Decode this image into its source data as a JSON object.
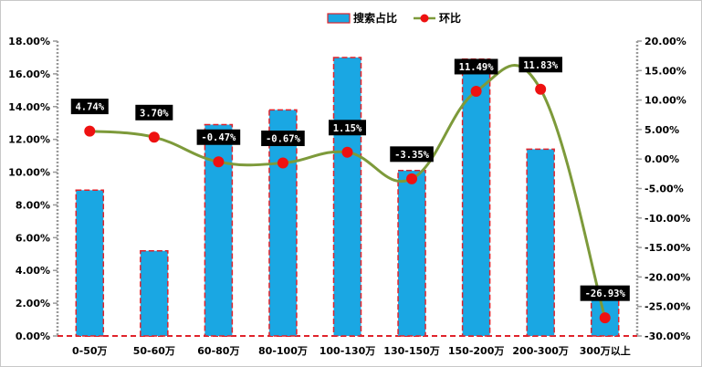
{
  "chart_data": {
    "type": "bar+line",
    "categories": [
      "0-50万",
      "50-60万",
      "60-80万",
      "80-100万",
      "100-130万",
      "130-150万",
      "150-200万",
      "200-300万",
      "300万以上"
    ],
    "series": [
      {
        "name": "搜索占比",
        "type": "bar",
        "axis": "left",
        "values": [
          8.9,
          5.2,
          12.9,
          13.8,
          17.0,
          10.1,
          16.9,
          11.4,
          3.0
        ]
      },
      {
        "name": "环比",
        "type": "line",
        "axis": "right",
        "values": [
          4.74,
          3.7,
          -0.47,
          -0.67,
          1.15,
          -3.35,
          11.49,
          11.83,
          -26.93
        ],
        "labels": [
          "4.74%",
          "3.70%",
          "-0.47%",
          "-0.67%",
          "1.15%",
          "-3.35%",
          "11.49%",
          "11.83%",
          "-26.93%"
        ]
      }
    ],
    "left_axis": {
      "ylim": [
        0,
        18
      ],
      "ticks": [
        0,
        2,
        4,
        6,
        8,
        10,
        12,
        14,
        16,
        18
      ],
      "tick_labels": [
        "0.00%",
        "2.00%",
        "4.00%",
        "6.00%",
        "8.00%",
        "10.00%",
        "12.00%",
        "14.00%",
        "16.00%",
        "18.00%"
      ]
    },
    "right_axis": {
      "ylim": [
        -30,
        20
      ],
      "ticks": [
        -30,
        -25,
        -20,
        -15,
        -10,
        -5,
        0,
        5,
        10,
        15,
        20
      ],
      "tick_labels": [
        "-30.00%",
        "-25.00%",
        "-20.00%",
        "-15.00%",
        "-10.00%",
        "-5.00%",
        "0.00%",
        "5.00%",
        "10.00%",
        "15.00%",
        "20.00%"
      ]
    },
    "legend": {
      "position": "top-center",
      "items": [
        {
          "label": "搜索占比",
          "kind": "bar"
        },
        {
          "label": "环比",
          "kind": "line-marker"
        }
      ]
    },
    "colors": {
      "bar_fill": "#1aa7e3",
      "bar_border": "#e0232b",
      "line": "#7d9a3a",
      "marker": "#ee1111",
      "label_bg": "#000000",
      "label_text": "#ffffff"
    }
  }
}
